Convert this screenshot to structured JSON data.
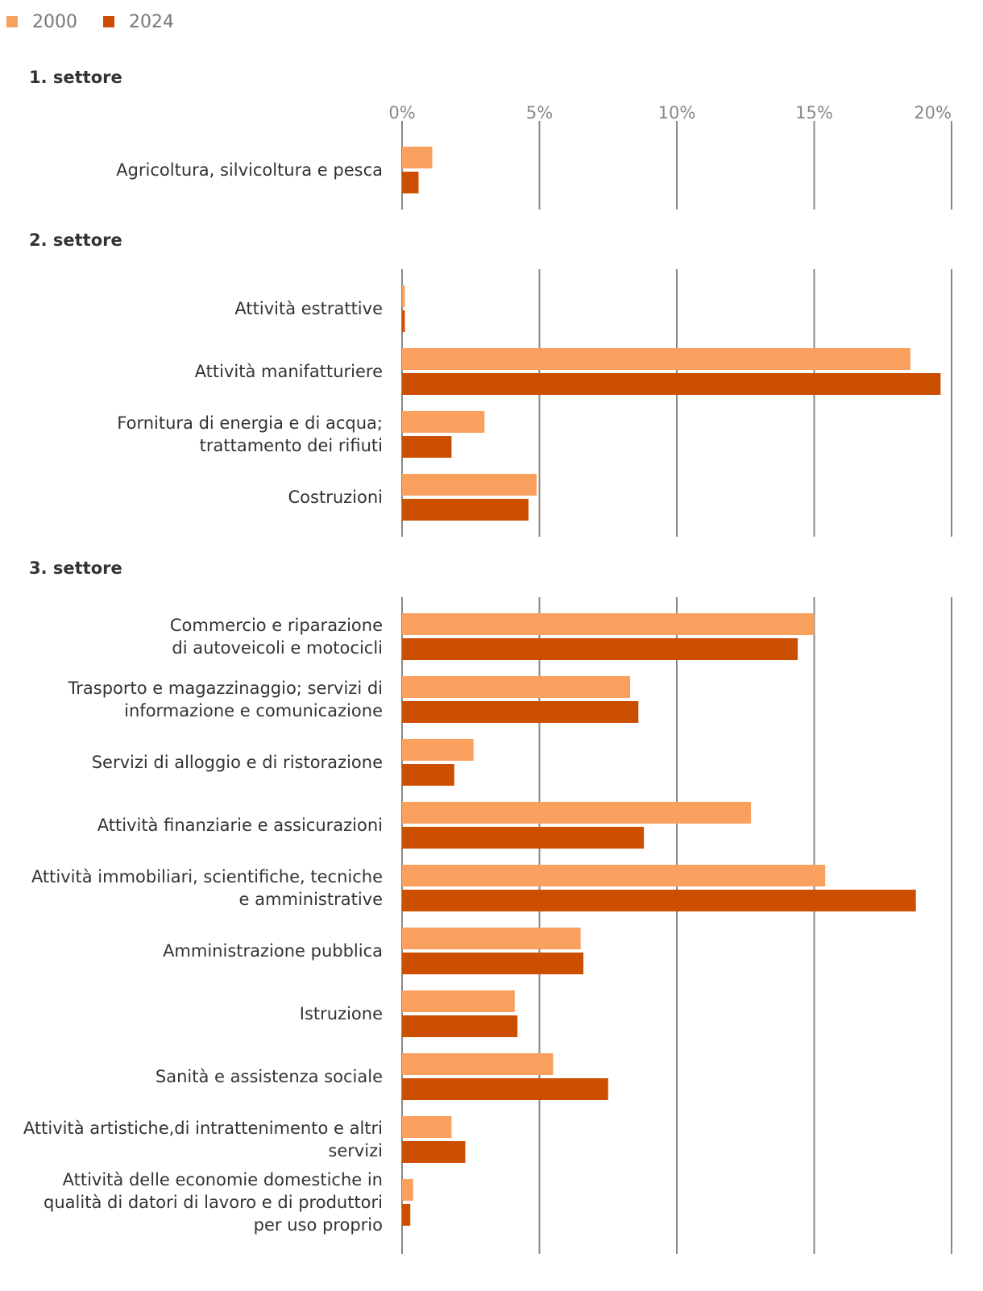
{
  "chart_data": {
    "type": "bar",
    "orientation": "horizontal",
    "unit": "%",
    "xlim": [
      0,
      20
    ],
    "ticks": [
      0,
      5,
      10,
      15,
      20
    ],
    "tick_labels": [
      "0%",
      "5%",
      "10%",
      "15%",
      "20%"
    ],
    "legend": {
      "position": "top-left",
      "entries": [
        {
          "name": "2000",
          "color": "#f9a05e"
        },
        {
          "name": "2024",
          "color": "#cc4f00"
        }
      ]
    },
    "sections": [
      {
        "title": "1. settore",
        "categories": [
          {
            "label": [
              "Agricoltura, silvicoltura e pesca"
            ],
            "values": [
              1.1,
              0.6
            ]
          }
        ]
      },
      {
        "title": "2. settore",
        "categories": [
          {
            "label": [
              "Attività estrattive"
            ],
            "values": [
              0.1,
              0.1
            ]
          },
          {
            "label": [
              "Attività manifatturiere"
            ],
            "values": [
              18.5,
              19.6
            ]
          },
          {
            "label": [
              "Fornitura di energia e di acqua;",
              "trattamento dei rifiuti"
            ],
            "values": [
              3.0,
              1.8
            ]
          },
          {
            "label": [
              "Costruzioni"
            ],
            "values": [
              4.9,
              4.6
            ]
          }
        ]
      },
      {
        "title": "3. settore",
        "categories": [
          {
            "label": [
              "Commercio e riparazione",
              "di autoveicoli e motocicli"
            ],
            "values": [
              15.0,
              14.4
            ]
          },
          {
            "label": [
              "Trasporto e magazzinaggio; servizi di",
              "informazione e comunicazione"
            ],
            "values": [
              8.3,
              8.6
            ]
          },
          {
            "label": [
              "Servizi di alloggio e di ristorazione"
            ],
            "values": [
              2.6,
              1.9
            ]
          },
          {
            "label": [
              "Attività finanziarie e assicurazioni"
            ],
            "values": [
              12.7,
              8.8
            ]
          },
          {
            "label": [
              "Attività immobiliari, scientifiche, tecniche",
              "e amministrative"
            ],
            "values": [
              15.4,
              18.7
            ]
          },
          {
            "label": [
              "Amministrazione pubblica"
            ],
            "values": [
              6.5,
              6.6
            ]
          },
          {
            "label": [
              "Istruzione"
            ],
            "values": [
              4.1,
              4.2
            ]
          },
          {
            "label": [
              "Sanità e assistenza sociale"
            ],
            "values": [
              5.5,
              7.5
            ]
          },
          {
            "label": [
              "Attività artistiche,di intrattenimento e altri",
              "servizi"
            ],
            "values": [
              1.8,
              2.3
            ]
          },
          {
            "label": [
              "Attività delle economie domestiche in",
              "qualità di datori di lavoro e di produttori",
              "per uso proprio"
            ],
            "values": [
              0.4,
              0.3
            ]
          }
        ]
      }
    ]
  }
}
